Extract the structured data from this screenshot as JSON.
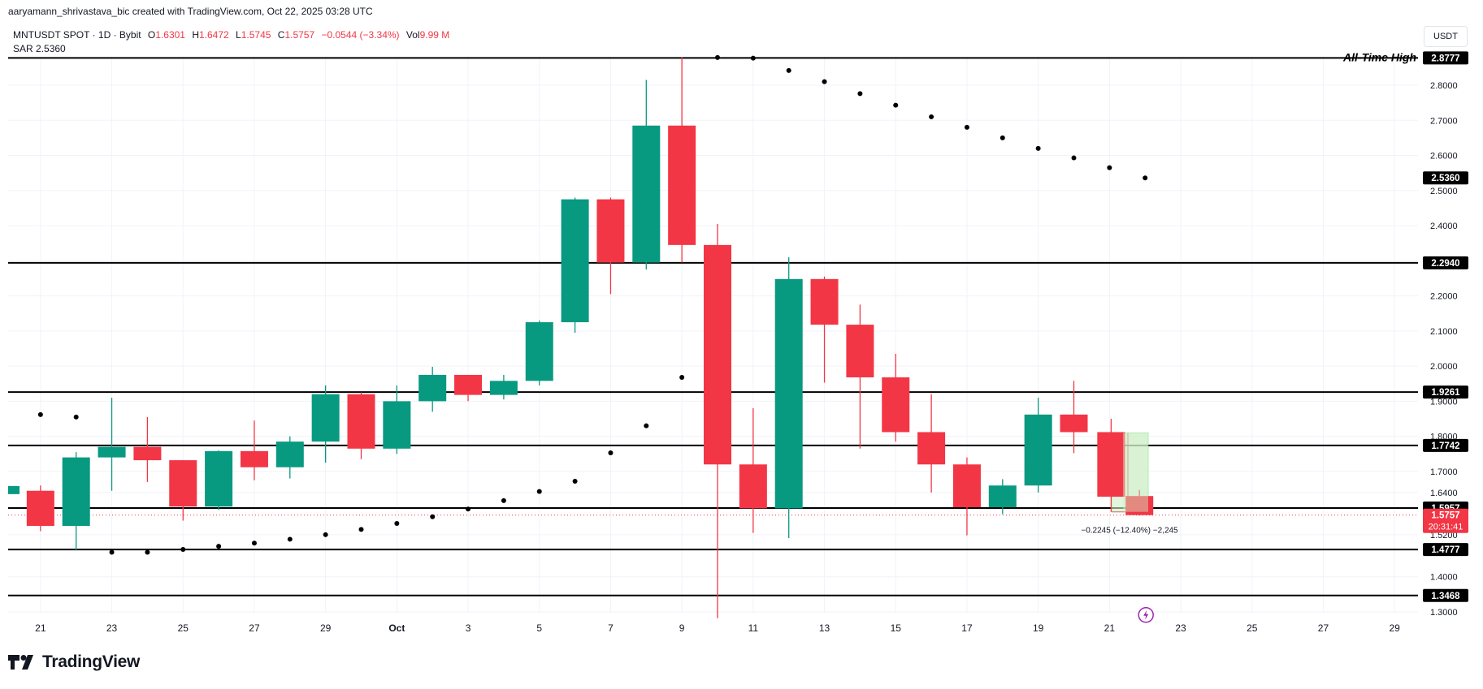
{
  "header": {
    "credit": "aaryamann_shrivastava_bic created with TradingView.com, Oct 22, 2025 03:28 UTC",
    "symbol": "MNTUSDT SPOT · 1D · Bybit",
    "open_label": "O",
    "open": "1.6301",
    "high_label": "H",
    "high": "1.6472",
    "low_label": "L",
    "low": "1.5745",
    "close_label": "C",
    "close": "1.5757",
    "change": "−0.0544 (−3.34%)",
    "vol_label": "Vol",
    "vol": "9.99 M",
    "sar_label": "SAR",
    "sar_value": "2.5360",
    "currency": "USDT"
  },
  "brand": {
    "logo_text": "TradingView"
  },
  "colors": {
    "up": "#089981",
    "down": "#f23645",
    "line": "#000000",
    "grid": "#f0f3fa",
    "text": "#131722"
  },
  "chart_data": {
    "type": "candlestick",
    "y_axis": {
      "min": 1.3,
      "max": 2.9,
      "scale": "linear",
      "ticks": [
        "1.3000",
        "1.4000",
        "1.5200",
        "1.6400",
        "1.7000",
        "1.8000",
        "1.9000",
        "2.0000",
        "2.1000",
        "2.2000",
        "2.3000",
        "2.4000",
        "2.5000",
        "2.6000",
        "2.7000",
        "2.8000"
      ]
    },
    "x_axis": {
      "ticks": [
        "21",
        "23",
        "25",
        "27",
        "29",
        "Oct",
        "3",
        "5",
        "7",
        "9",
        "11",
        "13",
        "15",
        "17",
        "19",
        "21",
        "23",
        "25",
        "27",
        "29"
      ]
    },
    "candles": [
      {
        "date": "Sep 21",
        "o": 1.647,
        "h": 1.647,
        "l": 1.647,
        "c": 1.647
      },
      {
        "date": "Sep 22",
        "o": 1.645,
        "h": 1.66,
        "l": 1.53,
        "c": 1.545
      },
      {
        "date": "Sep 23",
        "o": 1.545,
        "h": 1.755,
        "l": 1.475,
        "c": 1.74
      },
      {
        "date": "Sep 24",
        "o": 1.74,
        "h": 1.91,
        "l": 1.645,
        "c": 1.77
      },
      {
        "date": "Sep 25",
        "o": 1.77,
        "h": 1.855,
        "l": 1.67,
        "c": 1.732
      },
      {
        "date": "Sep 26",
        "o": 1.732,
        "h": 1.732,
        "l": 1.56,
        "c": 1.6
      },
      {
        "date": "Sep 27",
        "o": 1.6,
        "h": 1.76,
        "l": 1.59,
        "c": 1.758
      },
      {
        "date": "Sep 28",
        "o": 1.758,
        "h": 1.845,
        "l": 1.675,
        "c": 1.712
      },
      {
        "date": "Sep 29",
        "o": 1.712,
        "h": 1.8,
        "l": 1.68,
        "c": 1.785
      },
      {
        "date": "Sep 30",
        "o": 1.785,
        "h": 1.945,
        "l": 1.725,
        "c": 1.92
      },
      {
        "date": "Oct 1",
        "o": 1.92,
        "h": 1.925,
        "l": 1.735,
        "c": 1.765
      },
      {
        "date": "Oct 2",
        "o": 1.765,
        "h": 1.945,
        "l": 1.75,
        "c": 1.9
      },
      {
        "date": "Oct 3",
        "o": 1.9,
        "h": 1.998,
        "l": 1.87,
        "c": 1.975
      },
      {
        "date": "Oct 4",
        "o": 1.975,
        "h": 1.975,
        "l": 1.9,
        "c": 1.918
      },
      {
        "date": "Oct 5",
        "o": 1.918,
        "h": 1.975,
        "l": 1.905,
        "c": 1.958
      },
      {
        "date": "Oct 6",
        "o": 1.958,
        "h": 2.13,
        "l": 1.945,
        "c": 2.125
      },
      {
        "date": "Oct 7",
        "o": 2.125,
        "h": 2.48,
        "l": 2.095,
        "c": 2.475
      },
      {
        "date": "Oct 8",
        "o": 2.475,
        "h": 2.48,
        "l": 2.205,
        "c": 2.295
      },
      {
        "date": "Oct 9",
        "o": 2.295,
        "h": 2.815,
        "l": 2.275,
        "c": 2.685
      },
      {
        "date": "Oct 10",
        "o": 2.685,
        "h": 2.88,
        "l": 2.295,
        "c": 2.345
      },
      {
        "date": "Oct 11",
        "o": 2.345,
        "h": 2.405,
        "l": 1.282,
        "c": 1.72
      },
      {
        "date": "Oct 12",
        "o": 1.72,
        "h": 1.88,
        "l": 1.525,
        "c": 1.595
      },
      {
        "date": "Oct 13",
        "o": 1.595,
        "h": 2.31,
        "l": 1.51,
        "c": 2.248
      },
      {
        "date": "Oct 14",
        "o": 2.248,
        "h": 2.255,
        "l": 1.953,
        "c": 2.118
      },
      {
        "date": "Oct 15",
        "o": 2.118,
        "h": 2.175,
        "l": 1.765,
        "c": 1.968
      },
      {
        "date": "Oct 16",
        "o": 1.968,
        "h": 2.035,
        "l": 1.785,
        "c": 1.812
      },
      {
        "date": "Oct 17",
        "o": 1.812,
        "h": 1.92,
        "l": 1.64,
        "c": 1.72
      },
      {
        "date": "Oct 18",
        "o": 1.72,
        "h": 1.74,
        "l": 1.518,
        "c": 1.598
      },
      {
        "date": "Oct 19",
        "o": 1.598,
        "h": 1.678,
        "l": 1.578,
        "c": 1.66
      },
      {
        "date": "Oct 20",
        "o": 1.66,
        "h": 1.91,
        "l": 1.64,
        "c": 1.862
      },
      {
        "date": "Oct 21",
        "o": 1.862,
        "h": 1.958,
        "l": 1.752,
        "c": 1.812
      },
      {
        "date": "Oct 22",
        "o": 1.63,
        "h": 1.6472,
        "l": 1.5745,
        "c": 1.5757
      }
    ],
    "extra_candle": {
      "date": "Oct 21 (prior)",
      "o": 1.812,
      "h": 1.85,
      "l": 1.585,
      "c": 1.628
    },
    "sar": [
      {
        "date": "Sep 22",
        "v": 1.862
      },
      {
        "date": "Sep 23",
        "v": 1.855
      },
      {
        "date": "Sep 24",
        "v": 1.47
      },
      {
        "date": "Sep 25",
        "v": 1.47
      },
      {
        "date": "Sep 26",
        "v": 1.478
      },
      {
        "date": "Sep 27",
        "v": 1.487
      },
      {
        "date": "Sep 28",
        "v": 1.496
      },
      {
        "date": "Sep 29",
        "v": 1.507
      },
      {
        "date": "Sep 30",
        "v": 1.52
      },
      {
        "date": "Oct 1",
        "v": 1.535
      },
      {
        "date": "Oct 2",
        "v": 1.552
      },
      {
        "date": "Oct 3",
        "v": 1.571
      },
      {
        "date": "Oct 4",
        "v": 1.593
      },
      {
        "date": "Oct 5",
        "v": 1.617
      },
      {
        "date": "Oct 6",
        "v": 1.643
      },
      {
        "date": "Oct 7",
        "v": 1.672
      },
      {
        "date": "Oct 8",
        "v": 1.753
      },
      {
        "date": "Oct 9",
        "v": 1.83
      },
      {
        "date": "Oct 10",
        "v": 1.968
      },
      {
        "date": "Oct 11",
        "v": 2.879
      },
      {
        "date": "Oct 12",
        "v": 2.877
      },
      {
        "date": "Oct 13",
        "v": 2.842
      },
      {
        "date": "Oct 14",
        "v": 2.81
      },
      {
        "date": "Oct 15",
        "v": 2.776
      },
      {
        "date": "Oct 16",
        "v": 2.743
      },
      {
        "date": "Oct 17",
        "v": 2.71
      },
      {
        "date": "Oct 18",
        "v": 2.68
      },
      {
        "date": "Oct 19",
        "v": 2.65
      },
      {
        "date": "Oct 20",
        "v": 2.62
      },
      {
        "date": "Oct 21",
        "v": 2.593
      },
      {
        "date": "Oct 22",
        "v": 2.565
      },
      {
        "date": "Oct 23",
        "v": 2.536
      }
    ],
    "horizontal_levels": [
      {
        "value": 2.8777,
        "label": "2.8777",
        "note": "All-Time High"
      },
      {
        "value": 2.294,
        "label": "2.2940"
      },
      {
        "value": 1.9261,
        "label": "1.9261"
      },
      {
        "value": 1.7742,
        "label": "1.7742"
      },
      {
        "value": 1.5957,
        "label": "1.5957"
      },
      {
        "value": 1.4777,
        "label": "1.4777"
      },
      {
        "value": 1.3468,
        "label": "1.3468"
      }
    ],
    "sar_label": {
      "value": 2.536,
      "label": "2.5360"
    },
    "current_price": {
      "value": 1.5757,
      "label": "1.5757",
      "countdown": "20:31:41"
    },
    "measure": {
      "from": 1.81,
      "to": 1.585,
      "text": "−0.2245 (−12.40%) −2,245"
    }
  }
}
